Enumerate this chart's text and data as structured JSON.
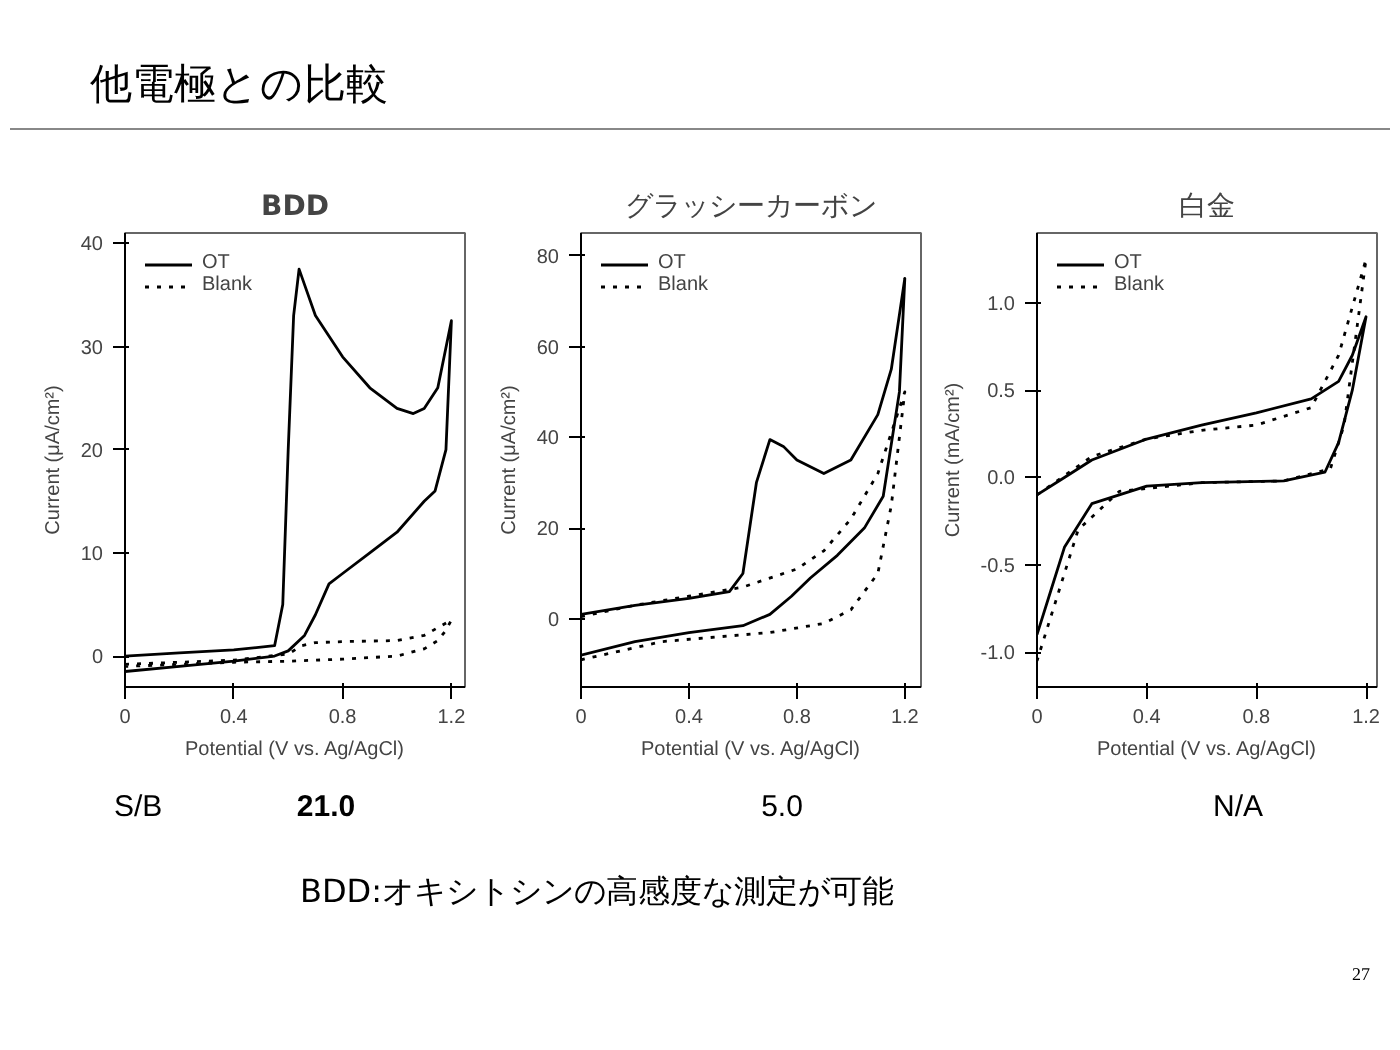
{
  "chart_data": [
    {
      "type": "line",
      "title": "BDD",
      "xlabel": "Potential (V vs. Ag/AgCl)",
      "ylabel": "Current (μA/cm²)",
      "annotations": [
        "他電極との比較",
        "S/B",
        "21.0"
      ],
      "xlim": [
        0,
        1.25
      ],
      "ylim": [
        -3,
        41
      ],
      "xticks": [
        0,
        0.4,
        0.8,
        1.2
      ],
      "yticks": [
        0,
        10,
        20,
        30,
        40
      ],
      "legend": "top left",
      "grid": false,
      "marker": "none",
      "series": [
        {
          "name": "OT",
          "color": "#000000",
          "line_style": "solid",
          "x": [
            0,
            0.2,
            0.4,
            0.55,
            0.58,
            0.6,
            0.62,
            0.64,
            0.66,
            0.7,
            0.8,
            0.9,
            1.0,
            1.06,
            1.1,
            1.15,
            1.2,
            1.18,
            1.14,
            1.1,
            1.0,
            0.9,
            0.8,
            0.75,
            0.7,
            0.66,
            0.6,
            0.55,
            0.4,
            0.2,
            0
          ],
          "values": [
            0,
            0.3,
            0.6,
            1,
            5,
            20,
            33,
            37.5,
            36,
            33,
            29,
            26,
            24,
            23.5,
            24,
            26,
            32.5,
            20,
            16,
            15,
            12,
            10,
            8,
            7,
            4,
            2,
            0.5,
            0,
            -0.5,
            -1,
            -1.5
          ]
        },
        {
          "name": "Blank",
          "color": "#000000",
          "line_style": "dotted",
          "x": [
            0,
            0.2,
            0.4,
            0.6,
            0.65,
            0.7,
            0.8,
            1.0,
            1.1,
            1.2,
            1.18,
            1.15,
            1.1,
            1.0,
            0.8,
            0.6,
            0.4,
            0.2,
            0
          ],
          "values": [
            -0.8,
            -0.6,
            -0.4,
            0.2,
            1,
            1.3,
            1.4,
            1.5,
            2,
            3.5,
            2.5,
            1.5,
            0.7,
            0,
            -0.3,
            -0.5,
            -0.6,
            -0.8,
            -1
          ]
        }
      ]
    },
    {
      "type": "line",
      "title": "グラッシーカーボン",
      "xlabel": "Potential (V vs. Ag/AgCl)",
      "ylabel": "Current (μA/cm²)",
      "annotations": [
        "5.0",
        "BDD:オキシトシンの高感度な測定が可能"
      ],
      "xlim": [
        0,
        1.26
      ],
      "ylim": [
        -15,
        85
      ],
      "xticks": [
        0,
        0.4,
        0.8,
        1.2
      ],
      "yticks": [
        0,
        20,
        40,
        60,
        80
      ],
      "legend": "top left",
      "grid": false,
      "marker": "none",
      "series": [
        {
          "name": "OT",
          "color": "#000000",
          "line_style": "solid",
          "x": [
            0,
            0.2,
            0.4,
            0.55,
            0.6,
            0.65,
            0.7,
            0.75,
            0.8,
            0.9,
            1.0,
            1.1,
            1.15,
            1.2,
            1.18,
            1.12,
            1.05,
            0.95,
            0.85,
            0.78,
            0.7,
            0.6,
            0.4,
            0.2,
            0
          ],
          "values": [
            1,
            3,
            4.5,
            6,
            10,
            30,
            39.5,
            38,
            35,
            32,
            35,
            45,
            55,
            75,
            50,
            27,
            20,
            14,
            9,
            5,
            1,
            -1.5,
            -3,
            -5,
            -8
          ]
        },
        {
          "name": "Blank",
          "color": "#000000",
          "line_style": "dotted",
          "x": [
            0,
            0.2,
            0.4,
            0.6,
            0.8,
            0.9,
            1.0,
            1.1,
            1.2,
            1.15,
            1.1,
            1.0,
            0.9,
            0.7,
            0.5,
            0.3,
            0
          ],
          "values": [
            0.5,
            3,
            5,
            7,
            11,
            15,
            22,
            32,
            50,
            25,
            10,
            2,
            -1,
            -3,
            -4,
            -5,
            -9
          ]
        }
      ]
    },
    {
      "type": "line",
      "title": "白金",
      "xlabel": "Potential (V vs. Ag/AgCl)",
      "ylabel": "Current (mA/cm²)",
      "annotations": [
        "N/A",
        "27"
      ],
      "xlim": [
        0,
        1.24
      ],
      "ylim": [
        -1.2,
        1.4
      ],
      "xticks": [
        0,
        0.4,
        0.8,
        1.2
      ],
      "yticks": [
        {
          "value": -1.0,
          "label": "-1.0"
        },
        {
          "value": -0.5,
          "label": "-0.5"
        },
        {
          "value": 0,
          "label": "0.0"
        },
        {
          "value": 0.5,
          "label": "0.5"
        },
        {
          "value": 1.0,
          "label": "1.0"
        }
      ],
      "legend": "top left",
      "grid": false,
      "marker": "none",
      "series": [
        {
          "name": "OT",
          "color": "#000000",
          "line_style": "solid",
          "x": [
            0,
            0.1,
            0.2,
            0.4,
            0.6,
            0.8,
            1.0,
            1.1,
            1.15,
            1.2,
            1.15,
            1.1,
            1.05,
            0.9,
            0.6,
            0.4,
            0.2,
            0.1,
            0.05,
            0
          ],
          "values": [
            -0.1,
            0,
            0.1,
            0.22,
            0.3,
            0.37,
            0.45,
            0.55,
            0.7,
            0.92,
            0.5,
            0.2,
            0.03,
            -0.02,
            -0.03,
            -0.05,
            -0.15,
            -0.4,
            -0.65,
            -0.9
          ]
        },
        {
          "name": "Blank",
          "color": "#000000",
          "line_style": "dotted",
          "x": [
            0,
            0.2,
            0.4,
            0.6,
            0.8,
            1.0,
            1.1,
            1.2,
            1.12,
            1.07,
            0.9,
            0.6,
            0.3,
            0.15,
            0.1,
            0
          ],
          "values": [
            -0.1,
            0.12,
            0.22,
            0.27,
            0.3,
            0.4,
            0.7,
            1.25,
            0.3,
            0.05,
            -0.02,
            -0.03,
            -0.08,
            -0.3,
            -0.55,
            -1.05
          ]
        }
      ]
    }
  ]
}
